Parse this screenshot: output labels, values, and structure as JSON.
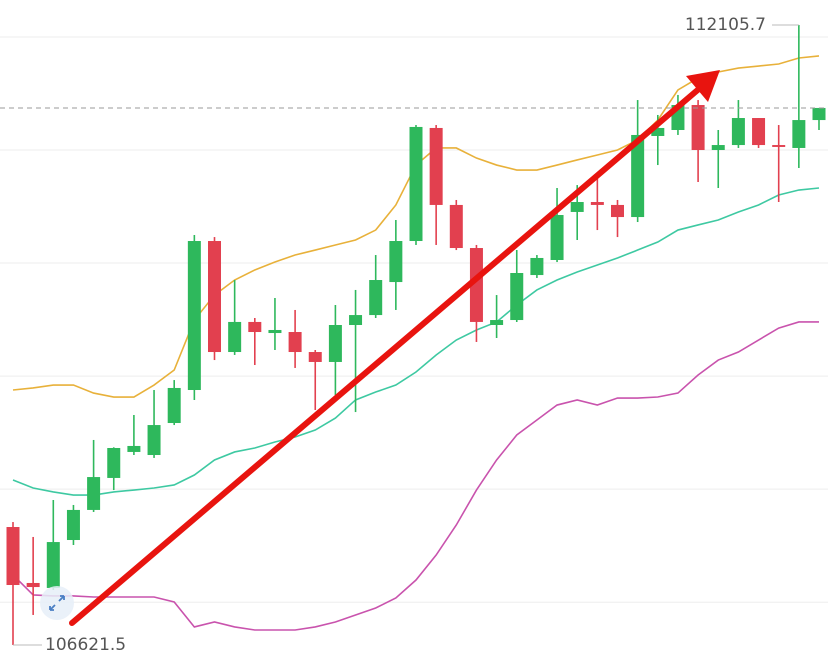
{
  "chart_data": {
    "type": "candlestick",
    "ylim": [
      106524,
      112327
    ],
    "yticks": [
      107000,
      108000,
      109000,
      110000,
      111000,
      112000
    ],
    "grid": true,
    "show_tick_labels": false,
    "up_color": "#2eb85c",
    "down_color": "#e2404f",
    "open": [
      107665,
      107170,
      107126,
      107550,
      107816,
      108099,
      108329,
      108302,
      108585,
      108877,
      110195,
      109213,
      109479,
      109381,
      109390,
      109213,
      109125,
      109452,
      109540,
      109832,
      110195,
      111195,
      110514,
      110133,
      109452,
      109496,
      109894,
      110027,
      110452,
      110540,
      110514,
      110407,
      111124,
      111177,
      111398,
      111000,
      111044,
      111283,
      111044,
      111018,
      111265
    ],
    "high": [
      107709,
      107577,
      107904,
      107860,
      108435,
      108370,
      108656,
      108877,
      108965,
      110248,
      110230,
      109850,
      109514,
      109691,
      109585,
      109231,
      109629,
      109762,
      110071,
      110381,
      111221,
      111221,
      110558,
      110160,
      109717,
      110115,
      110071,
      110664,
      110690,
      110779,
      110558,
      111442,
      111310,
      111487,
      111442,
      111177,
      111442,
      111283,
      111221,
      112105.7,
      111372
    ],
    "low": [
      106621.5,
      106887,
      107108,
      107506,
      107798,
      107992,
      108302,
      108276,
      108567,
      108789,
      109142,
      109187,
      109098,
      109231,
      109072,
      108700,
      108833,
      108682,
      109514,
      109585,
      110160,
      110160,
      110115,
      109302,
      109337,
      109479,
      109868,
      110009,
      110204,
      110292,
      110230,
      110363,
      110867,
      111133,
      110717,
      110664,
      111018,
      111018,
      110540,
      110841,
      111177
    ],
    "close": [
      107152,
      107134,
      107532,
      107816,
      108107,
      108364,
      108382,
      108567,
      108895,
      110195,
      109213,
      109479,
      109390,
      109408,
      109213,
      109125,
      109452,
      109540,
      109850,
      110195,
      111204,
      110514,
      110133,
      109479,
      109496,
      109912,
      110045,
      110425,
      110540,
      110514,
      110407,
      111133,
      111195,
      111398,
      111000,
      111044,
      111283,
      111044,
      111027,
      111265,
      111372
    ],
    "series": [
      {
        "name": "upper",
        "color": "#e8b13a",
        "values": [
          108877,
          108895,
          108921,
          108921,
          108850,
          108815,
          108815,
          108921,
          109054,
          109496,
          109717,
          109850,
          109939,
          110009,
          110071,
          110115,
          110160,
          110204,
          110292,
          110514,
          110867,
          111018,
          111018,
          110929,
          110867,
          110823,
          110823,
          110867,
          110912,
          110956,
          111000,
          111089,
          111265,
          111531,
          111637,
          111690,
          111725,
          111743,
          111761,
          111814,
          111832
        ]
      },
      {
        "name": "middle",
        "color": "#3ec9a2",
        "values": [
          108081,
          108010,
          107975,
          107948,
          107948,
          107975,
          107992,
          108010,
          108037,
          108125,
          108258,
          108329,
          108364,
          108417,
          108461,
          108523,
          108629,
          108789,
          108859,
          108921,
          109036,
          109187,
          109319,
          109408,
          109479,
          109629,
          109762,
          109850,
          109921,
          109983,
          110045,
          110115,
          110186,
          110292,
          110337,
          110381,
          110452,
          110514,
          110602,
          110646,
          110664
        ]
      },
      {
        "name": "lower",
        "color": "#c953ad",
        "values": [
          107241,
          107064,
          107055,
          107055,
          107046,
          107046,
          107046,
          107046,
          107002,
          106781,
          106825,
          106781,
          106754,
          106754,
          106754,
          106781,
          106825,
          106887,
          106949,
          107037,
          107196,
          107417,
          107683,
          107992,
          108258,
          108479,
          108612,
          108744,
          108789,
          108744,
          108806,
          108806,
          108815,
          108850,
          109010,
          109142,
          109213,
          109319,
          109425,
          109479,
          109479
        ]
      }
    ]
  }
}
